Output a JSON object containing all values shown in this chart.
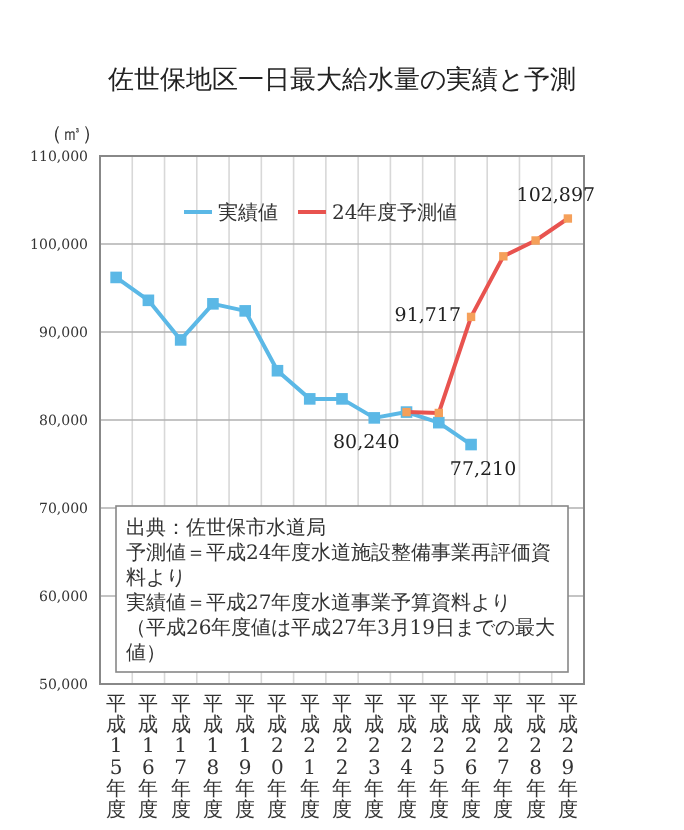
{
  "chart_data": {
    "type": "line",
    "title": "佐世保地区一日最大給水量の実績と予測",
    "ylabel": "（㎥）",
    "categories": [
      "平成15年度",
      "平成16年度",
      "平成17年度",
      "平成18年度",
      "平成19年度",
      "平成20年度",
      "平成21年度",
      "平成22年度",
      "平成23年度",
      "平成24年度",
      "平成25年度",
      "平成26年度",
      "平成27年度",
      "平成28年度",
      "平成29年度"
    ],
    "series": [
      {
        "name": "実績値",
        "color": "#5bb8e6",
        "values": [
          96200,
          93600,
          89100,
          93200,
          92400,
          85600,
          82400,
          82400,
          80240,
          80900,
          79700,
          77210,
          null,
          null,
          null
        ],
        "value_labels": [
          null,
          null,
          null,
          null,
          null,
          null,
          null,
          null,
          "80,240",
          null,
          null,
          "77,210",
          null,
          null,
          null
        ]
      },
      {
        "name": "24年度予測値",
        "color": "#e8534f",
        "values": [
          null,
          null,
          null,
          null,
          null,
          null,
          null,
          null,
          null,
          80900,
          80800,
          91717,
          98600,
          100400,
          102897
        ],
        "value_labels": [
          null,
          null,
          null,
          null,
          null,
          null,
          null,
          null,
          null,
          null,
          null,
          "91,717",
          null,
          null,
          "102,897"
        ]
      }
    ],
    "ylim": [
      50000,
      110000
    ],
    "yticks": [
      {
        "value": 50000,
        "label": "50,000"
      },
      {
        "value": 60000,
        "label": "60,000"
      },
      {
        "value": 70000,
        "label": "70,000"
      },
      {
        "value": 80000,
        "label": "80,000"
      },
      {
        "value": 90000,
        "label": "90,000"
      },
      {
        "value": 100000,
        "label": "100,000"
      },
      {
        "value": 110000,
        "label": "110,000"
      }
    ],
    "grid": true,
    "legend": "top",
    "marker": "square",
    "annotations": [
      "出典：佐世保市水道局",
      "予測値＝平成24年度水道施設整備事業再評価資料より",
      "実績値＝平成27年度水道事業予算資料より",
      "（平成26年度値は平成27年3月19日までの最大値）"
    ]
  }
}
